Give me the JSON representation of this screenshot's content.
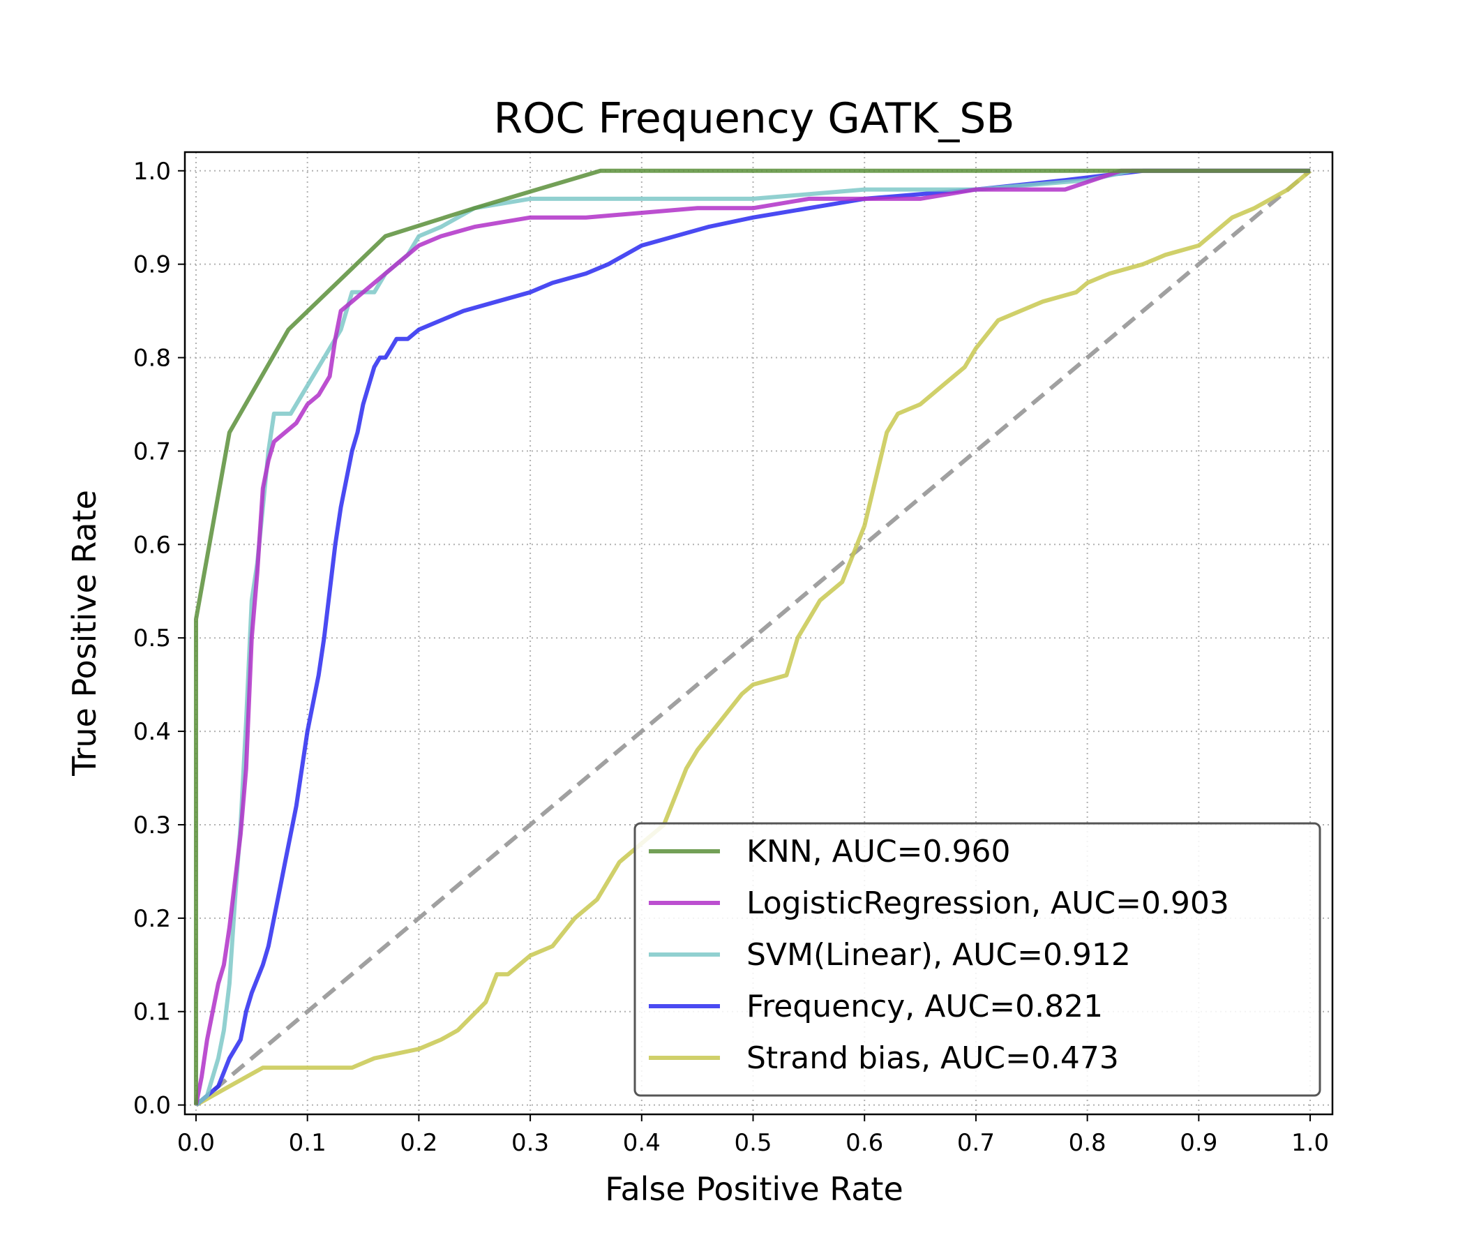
{
  "chart_data": {
    "type": "line",
    "title": "ROC Frequency GATK_SB",
    "xlabel": "False Positive Rate",
    "ylabel": "True Positive Rate",
    "xlim": [
      -0.01,
      1.02
    ],
    "ylim": [
      -0.01,
      1.02
    ],
    "xticks": [
      0.0,
      0.1,
      0.2,
      0.3,
      0.4,
      0.5,
      0.6,
      0.7,
      0.8,
      0.9,
      1.0
    ],
    "yticks": [
      0.0,
      0.1,
      0.2,
      0.3,
      0.4,
      0.5,
      0.6,
      0.7,
      0.8,
      0.9,
      1.0
    ],
    "grid": true,
    "legend_position": "lower-right",
    "series": [
      {
        "name": "KNN, AUC=0.960",
        "color": "#5a8f3a",
        "x": [
          0.0,
          0.0,
          0.03,
          0.083,
          0.17,
          0.25,
          0.363,
          1.0
        ],
        "y": [
          0.0,
          0.52,
          0.72,
          0.83,
          0.93,
          0.96,
          1.0,
          1.0
        ]
      },
      {
        "name": "LogisticRegression, AUC=0.903",
        "color": "#b030c8",
        "x": [
          0.0,
          0.005,
          0.01,
          0.015,
          0.02,
          0.025,
          0.03,
          0.035,
          0.04,
          0.045,
          0.05,
          0.055,
          0.06,
          0.065,
          0.07,
          0.08,
          0.09,
          0.1,
          0.11,
          0.12,
          0.125,
          0.13,
          0.14,
          0.15,
          0.16,
          0.17,
          0.18,
          0.2,
          0.22,
          0.25,
          0.3,
          0.35,
          0.45,
          0.5,
          0.55,
          0.65,
          0.7,
          0.78,
          0.83,
          1.0
        ],
        "y": [
          0.0,
          0.03,
          0.07,
          0.1,
          0.13,
          0.15,
          0.19,
          0.24,
          0.29,
          0.36,
          0.5,
          0.57,
          0.66,
          0.69,
          0.71,
          0.72,
          0.73,
          0.75,
          0.76,
          0.78,
          0.82,
          0.85,
          0.86,
          0.87,
          0.88,
          0.89,
          0.9,
          0.92,
          0.93,
          0.94,
          0.95,
          0.95,
          0.96,
          0.96,
          0.97,
          0.97,
          0.98,
          0.98,
          1.0,
          1.0
        ]
      },
      {
        "name": "SVM(Linear), AUC=0.912",
        "color": "#7ec8c8",
        "x": [
          0.0,
          0.01,
          0.02,
          0.025,
          0.03,
          0.035,
          0.04,
          0.045,
          0.05,
          0.055,
          0.06,
          0.065,
          0.07,
          0.085,
          0.1,
          0.11,
          0.12,
          0.13,
          0.135,
          0.14,
          0.16,
          0.17,
          0.18,
          0.19,
          0.2,
          0.22,
          0.25,
          0.3,
          0.35,
          0.5,
          0.6,
          0.7,
          0.8,
          0.84,
          1.0
        ],
        "y": [
          0.0,
          0.01,
          0.05,
          0.08,
          0.13,
          0.22,
          0.3,
          0.41,
          0.54,
          0.58,
          0.64,
          0.7,
          0.74,
          0.74,
          0.77,
          0.79,
          0.81,
          0.83,
          0.85,
          0.87,
          0.87,
          0.89,
          0.9,
          0.91,
          0.93,
          0.94,
          0.96,
          0.97,
          0.97,
          0.97,
          0.98,
          0.98,
          0.99,
          1.0,
          1.0
        ]
      },
      {
        "name": "Frequency, AUC=0.821",
        "color": "#2a2af0",
        "x": [
          0.0,
          0.02,
          0.03,
          0.04,
          0.045,
          0.05,
          0.06,
          0.065,
          0.07,
          0.075,
          0.08,
          0.085,
          0.09,
          0.095,
          0.1,
          0.105,
          0.11,
          0.115,
          0.12,
          0.125,
          0.13,
          0.135,
          0.14,
          0.145,
          0.15,
          0.155,
          0.16,
          0.165,
          0.17,
          0.175,
          0.18,
          0.19,
          0.2,
          0.22,
          0.24,
          0.27,
          0.3,
          0.32,
          0.35,
          0.37,
          0.4,
          0.43,
          0.46,
          0.5,
          0.55,
          0.6,
          0.7,
          0.78,
          0.85,
          0.95,
          1.0
        ],
        "y": [
          0.0,
          0.02,
          0.05,
          0.07,
          0.1,
          0.12,
          0.15,
          0.17,
          0.2,
          0.23,
          0.26,
          0.29,
          0.32,
          0.36,
          0.4,
          0.43,
          0.46,
          0.5,
          0.55,
          0.6,
          0.64,
          0.67,
          0.7,
          0.72,
          0.75,
          0.77,
          0.79,
          0.8,
          0.8,
          0.81,
          0.82,
          0.82,
          0.83,
          0.84,
          0.85,
          0.86,
          0.87,
          0.88,
          0.89,
          0.9,
          0.92,
          0.93,
          0.94,
          0.95,
          0.96,
          0.97,
          0.98,
          0.99,
          1.0,
          1.0,
          1.0
        ]
      },
      {
        "name": "Strand bias, AUC=0.473",
        "color": "#c8c850",
        "x": [
          0.0,
          0.03,
          0.06,
          0.1,
          0.14,
          0.16,
          0.2,
          0.22,
          0.235,
          0.26,
          0.27,
          0.28,
          0.3,
          0.32,
          0.34,
          0.36,
          0.38,
          0.4,
          0.42,
          0.43,
          0.44,
          0.45,
          0.47,
          0.49,
          0.5,
          0.53,
          0.54,
          0.55,
          0.56,
          0.58,
          0.59,
          0.6,
          0.61,
          0.62,
          0.63,
          0.65,
          0.67,
          0.69,
          0.7,
          0.72,
          0.76,
          0.79,
          0.8,
          0.82,
          0.85,
          0.87,
          0.9,
          0.93,
          0.95,
          0.98,
          1.0
        ],
        "y": [
          0.0,
          0.02,
          0.04,
          0.04,
          0.04,
          0.05,
          0.06,
          0.07,
          0.08,
          0.11,
          0.14,
          0.14,
          0.16,
          0.17,
          0.2,
          0.22,
          0.26,
          0.28,
          0.3,
          0.33,
          0.36,
          0.38,
          0.41,
          0.44,
          0.45,
          0.46,
          0.5,
          0.52,
          0.54,
          0.56,
          0.59,
          0.62,
          0.67,
          0.72,
          0.74,
          0.75,
          0.77,
          0.79,
          0.81,
          0.84,
          0.86,
          0.87,
          0.88,
          0.89,
          0.9,
          0.91,
          0.92,
          0.95,
          0.96,
          0.98,
          1.0
        ]
      }
    ],
    "reference_line": {
      "x": [
        0.0,
        1.0
      ],
      "y": [
        0.0,
        1.0
      ],
      "color": "#a0a0a0",
      "style": "dashed"
    }
  }
}
